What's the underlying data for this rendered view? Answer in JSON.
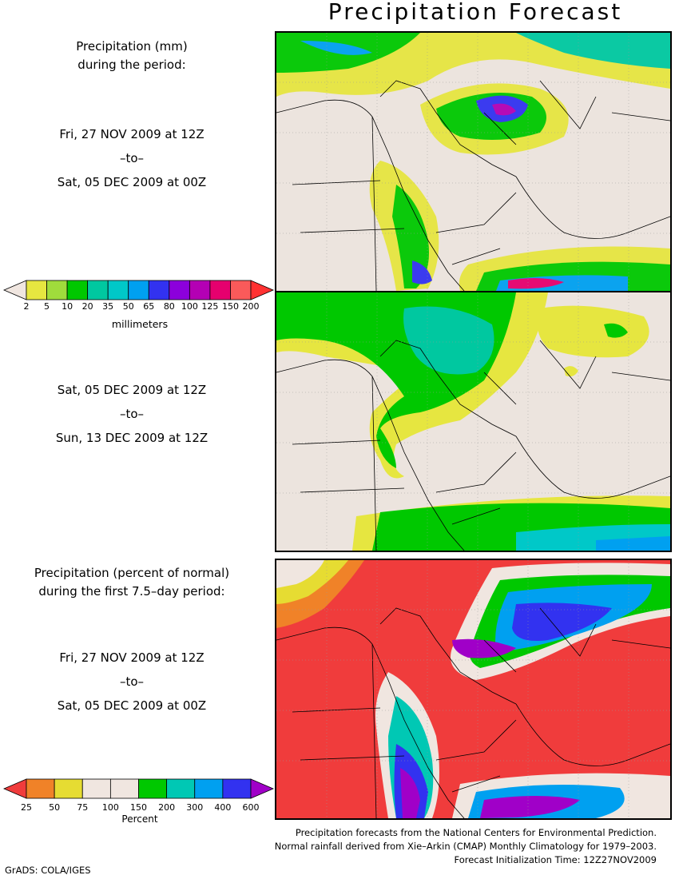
{
  "title": "Precipitation Forecast",
  "panel1": {
    "heading_line1": "Precipitation (mm)",
    "heading_line2": "during the period:",
    "start": "Fri, 27 NOV 2009 at 12Z",
    "to": "–to–",
    "end": "Sat, 05 DEC 2009 at 00Z"
  },
  "panel2": {
    "start": "Sat, 05 DEC 2009 at 12Z",
    "to": "–to–",
    "end": "Sun, 13 DEC 2009 at 12Z"
  },
  "panel3": {
    "heading_line1": "Precipitation (percent of normal)",
    "heading_line2": "during the first 7.5–day period:",
    "start": "Fri, 27 NOV 2009 at 12Z",
    "to": "–to–",
    "end": "Sat, 05 DEC 2009 at 00Z"
  },
  "legend_mm": {
    "unit": "millimeters",
    "labels": [
      "2",
      "5",
      "10",
      "20",
      "35",
      "50",
      "65",
      "80",
      "100",
      "125",
      "150",
      "200"
    ],
    "colors": [
      "#f0e6e0",
      "#e6e640",
      "#a0dc3c",
      "#00c800",
      "#00c8a0",
      "#00c8c8",
      "#00a0f0",
      "#3232f0",
      "#8c00dc",
      "#b400b4",
      "#e6006e",
      "#fa5a5a",
      "#ff3232"
    ]
  },
  "legend_pct": {
    "unit": "Percent",
    "labels": [
      "25",
      "50",
      "75",
      "100",
      "150",
      "200",
      "300",
      "400",
      "600"
    ],
    "colors": [
      "#f03c3c",
      "#f08228",
      "#e6dc32",
      "#f0e6e0",
      "#f0e6e0",
      "#00c800",
      "#00c8b4",
      "#00a0f0",
      "#3232f0",
      "#a000c8"
    ]
  },
  "footer": {
    "line1": "Precipitation forecasts from the National Centers for Environmental Prediction.",
    "line2": "Normal rainfall derived from Xie–Arkin (CMAP) Monthly Climatology for 1979–2003.",
    "line3": "Forecast Initialization Time: 12Z27NOV2009"
  },
  "credit": "GrADS: COLA/IGES"
}
